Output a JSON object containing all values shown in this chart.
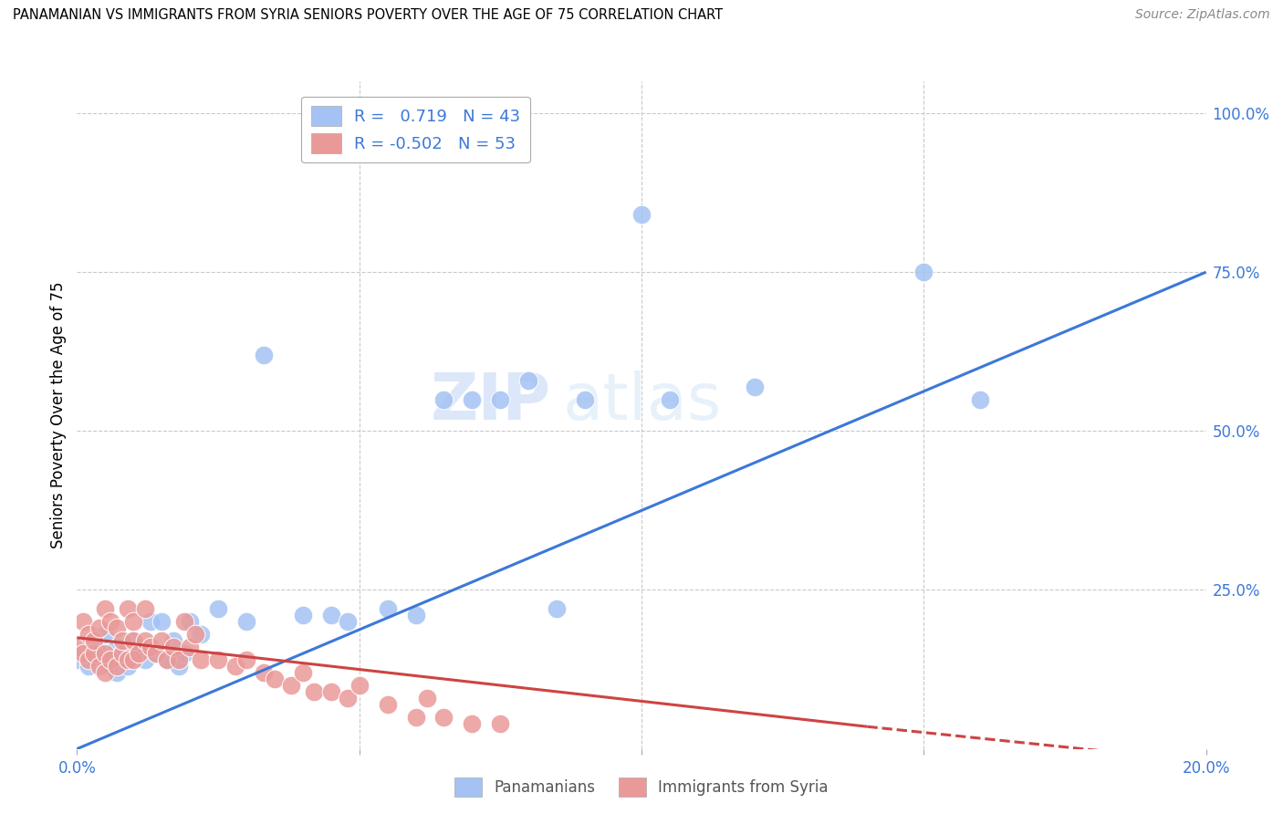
{
  "title": "PANAMANIAN VS IMMIGRANTS FROM SYRIA SENIORS POVERTY OVER THE AGE OF 75 CORRELATION CHART",
  "source": "Source: ZipAtlas.com",
  "ylabel_label": "Seniors Poverty Over the Age of 75",
  "right_ytick_vals": [
    0.0,
    0.25,
    0.5,
    0.75,
    1.0
  ],
  "right_ytick_labels": [
    "",
    "25.0%",
    "50.0%",
    "75.0%",
    "100.0%"
  ],
  "xlim": [
    0.0,
    0.2
  ],
  "ylim": [
    0.0,
    1.05
  ],
  "blue_color": "#a4c2f4",
  "pink_color": "#ea9999",
  "blue_line_color": "#3c78d8",
  "pink_line_color": "#cc4444",
  "watermark_text": "ZIPatlas",
  "background_color": "#ffffff",
  "grid_color": "#c9c9c9",
  "blue_scatter_x": [
    0.0,
    0.002,
    0.003,
    0.004,
    0.005,
    0.005,
    0.006,
    0.007,
    0.007,
    0.008,
    0.009,
    0.01,
    0.01,
    0.011,
    0.012,
    0.013,
    0.014,
    0.015,
    0.016,
    0.017,
    0.018,
    0.019,
    0.02,
    0.022,
    0.025,
    0.03,
    0.033,
    0.04,
    0.045,
    0.048,
    0.055,
    0.06,
    0.065,
    0.07,
    0.075,
    0.08,
    0.085,
    0.09,
    0.1,
    0.105,
    0.12,
    0.15,
    0.16
  ],
  "blue_scatter_y": [
    0.14,
    0.13,
    0.16,
    0.15,
    0.14,
    0.18,
    0.13,
    0.16,
    0.12,
    0.15,
    0.13,
    0.15,
    0.17,
    0.16,
    0.14,
    0.2,
    0.15,
    0.2,
    0.14,
    0.17,
    0.13,
    0.15,
    0.2,
    0.18,
    0.22,
    0.2,
    0.62,
    0.21,
    0.21,
    0.2,
    0.22,
    0.21,
    0.55,
    0.55,
    0.55,
    0.58,
    0.22,
    0.55,
    0.84,
    0.55,
    0.57,
    0.75,
    0.55
  ],
  "pink_scatter_x": [
    0.0,
    0.001,
    0.001,
    0.002,
    0.002,
    0.003,
    0.003,
    0.004,
    0.004,
    0.005,
    0.005,
    0.005,
    0.006,
    0.006,
    0.007,
    0.007,
    0.008,
    0.008,
    0.009,
    0.009,
    0.01,
    0.01,
    0.01,
    0.011,
    0.012,
    0.012,
    0.013,
    0.014,
    0.015,
    0.016,
    0.017,
    0.018,
    0.019,
    0.02,
    0.021,
    0.022,
    0.025,
    0.028,
    0.03,
    0.033,
    0.035,
    0.038,
    0.04,
    0.042,
    0.045,
    0.048,
    0.05,
    0.055,
    0.06,
    0.062,
    0.065,
    0.07,
    0.075
  ],
  "pink_scatter_y": [
    0.16,
    0.15,
    0.2,
    0.14,
    0.18,
    0.15,
    0.17,
    0.13,
    0.19,
    0.12,
    0.15,
    0.22,
    0.14,
    0.2,
    0.13,
    0.19,
    0.15,
    0.17,
    0.14,
    0.22,
    0.14,
    0.17,
    0.2,
    0.15,
    0.17,
    0.22,
    0.16,
    0.15,
    0.17,
    0.14,
    0.16,
    0.14,
    0.2,
    0.16,
    0.18,
    0.14,
    0.14,
    0.13,
    0.14,
    0.12,
    0.11,
    0.1,
    0.12,
    0.09,
    0.09,
    0.08,
    0.1,
    0.07,
    0.05,
    0.08,
    0.05,
    0.04,
    0.04
  ],
  "blue_line_x0": 0.0,
  "blue_line_y0": 0.0,
  "blue_line_x1": 0.2,
  "blue_line_y1": 0.75,
  "pink_line_x0": 0.0,
  "pink_line_y0": 0.175,
  "pink_line_x1": 0.2,
  "pink_line_y1": -0.02,
  "pink_line_solid_x1": 0.14,
  "pink_line_solid_y1": 0.035
}
